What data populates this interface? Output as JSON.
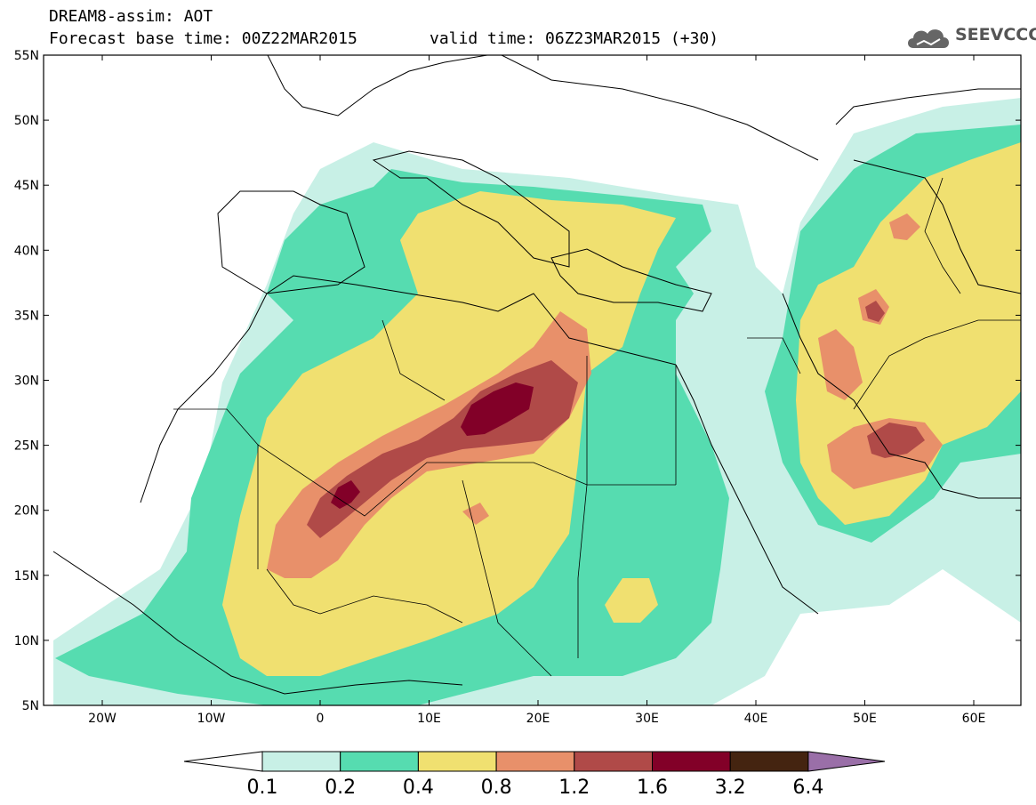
{
  "header": {
    "title": "DREAM8-assim: AOT",
    "base_time": "Forecast base time: 00Z22MAR2015",
    "valid_time": "valid time: 06Z23MAR2015 (+30)"
  },
  "logo": {
    "text": "SEEVCCC",
    "icon": "cloud-icon"
  },
  "map": {
    "variable": "AOT",
    "lat_labels": [
      "55N",
      "50N",
      "45N",
      "40N",
      "35N",
      "30N",
      "25N",
      "20N",
      "15N",
      "10N",
      "5N"
    ],
    "lon_labels": [
      "20W",
      "10W",
      "0",
      "10E",
      "20E",
      "30E",
      "40E",
      "50E",
      "60E"
    ]
  },
  "colorbar": {
    "levels": [
      "0.1",
      "0.2",
      "0.4",
      "0.8",
      "1.2",
      "1.6",
      "3.2",
      "6.4"
    ],
    "colors": [
      "#ffffff",
      "#c8f0e6",
      "#56dcb0",
      "#f0e070",
      "#e8906a",
      "#b04a48",
      "#820028",
      "#442410",
      "#9a6fa8"
    ]
  },
  "colors": {
    "c1": "#c8f0e6",
    "c2": "#56dcb0",
    "c3": "#f0e070",
    "c4": "#e8906a",
    "c5": "#b04a48",
    "c6": "#820028"
  }
}
